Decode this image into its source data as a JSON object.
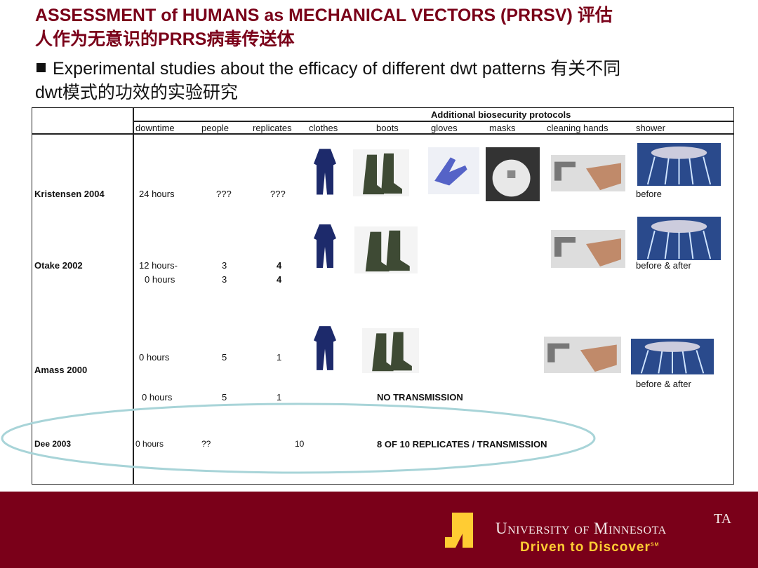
{
  "title_line1": "ASSESSMENT of HUMANS as  MECHANICAL VECTORS (PRRSV) 评估",
  "title_line2": "人作为无意识的PRRS病毒传送体",
  "bullet_line1": "Experimental studies about the efficacy of different dwt patterns 有关不同",
  "bullet_line2": "dwt模式的功效的实验研究",
  "table": {
    "group_header": "Additional biosecurity protocols",
    "columns": [
      "downtime",
      "people",
      "replicates",
      "clothes",
      "boots",
      "gloves",
      "masks",
      "cleaning hands",
      "shower"
    ],
    "rows": [
      {
        "study": "Kristensen 2004",
        "downtime": "24 hours",
        "people": "???",
        "replicates": "???",
        "shower": "before"
      },
      {
        "study": "Otake 2002",
        "downtime": [
          "12 hours-",
          "0 hours"
        ],
        "people": [
          "3",
          "3"
        ],
        "replicates": [
          "4",
          "4"
        ],
        "shower": "before & after"
      },
      {
        "study": "Amass 2000",
        "downtime": [
          "0 hours",
          "0 hours"
        ],
        "people": [
          "5",
          "5"
        ],
        "replicates": [
          "1",
          "1"
        ],
        "shower": "before & after",
        "result": "NO TRANSMISSION"
      },
      {
        "study": "Dee 2003",
        "downtime": "0 hours",
        "people": "??",
        "replicates": "10",
        "result": "8 OF 10 REPLICATES / TRANSMISSION"
      }
    ]
  },
  "footer": {
    "university": "University of Minnesota",
    "tagline": "Driven to Discover",
    "tagline_mark": "SM",
    "corner": "TA",
    "brand_color": "#7a0019",
    "accent_color": "#ffcc33"
  },
  "highlight_color": "#a8d4d8"
}
